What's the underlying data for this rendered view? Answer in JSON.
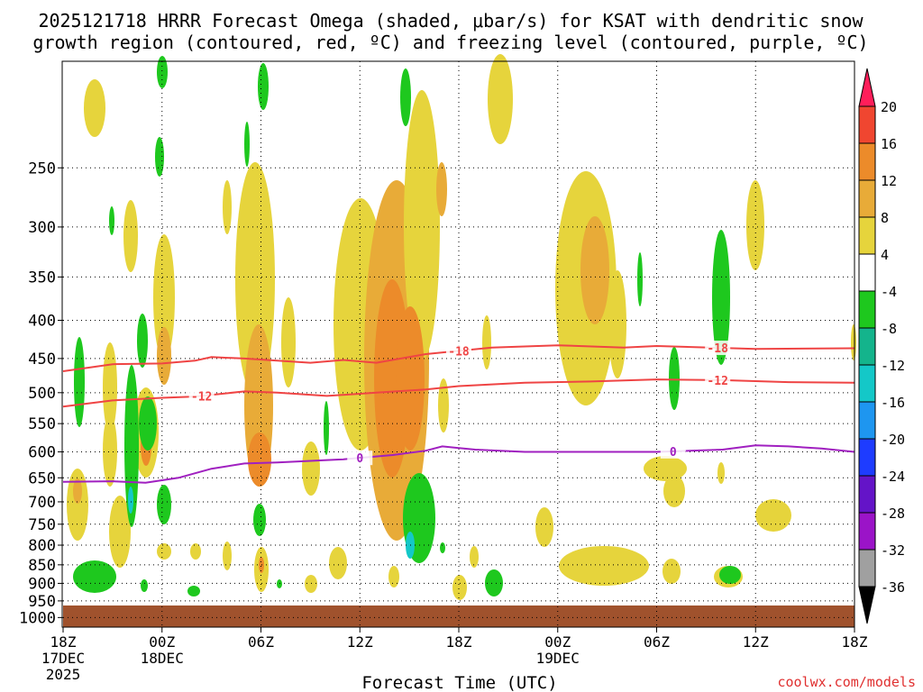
{
  "chart_data": {
    "type": "heatmap",
    "title_line1": "2025121718 HRRR Forecast Omega (shaded, μbar/s) for KSAT with dendritic snow",
    "title_line2": "growth region (contoured, red, ºC) and freezing level (contoured, purple, ºC)",
    "xlabel": "Forecast Time (UTC)",
    "ylabel": "",
    "credit": "coolwx.com/models",
    "x_range_hours": [
      0,
      48
    ],
    "y_range_hpa": [
      1030,
      180
    ],
    "y_scale": "log",
    "grid": true,
    "x_ticks": [
      {
        "hour": 0,
        "label": "18Z",
        "sub": "17DEC",
        "sub2": "2025"
      },
      {
        "hour": 6,
        "label": "00Z",
        "sub": "18DEC"
      },
      {
        "hour": 12,
        "label": "06Z"
      },
      {
        "hour": 18,
        "label": "12Z"
      },
      {
        "hour": 24,
        "label": "18Z"
      },
      {
        "hour": 30,
        "label": "00Z",
        "sub": "19DEC"
      },
      {
        "hour": 36,
        "label": "06Z"
      },
      {
        "hour": 42,
        "label": "12Z"
      },
      {
        "hour": 48,
        "label": "18Z"
      }
    ],
    "y_ticks": [
      250,
      300,
      350,
      400,
      450,
      500,
      550,
      600,
      650,
      700,
      750,
      800,
      850,
      900,
      950,
      1000
    ],
    "colorbar": {
      "labels": [
        "20",
        "16",
        "12",
        "8",
        "4",
        "-4",
        "-8",
        "-12",
        "-16",
        "-20",
        "-24",
        "-28",
        "-32",
        "-36"
      ],
      "colors": [
        "#ff1e5a",
        "#f04630",
        "#ec8b2a",
        "#e8ab38",
        "#e6d43c",
        "#ffffff",
        "#1ec81e",
        "#14b48c",
        "#14c8c8",
        "#1e96f0",
        "#1e3cff",
        "#6414c8",
        "#9b14c8",
        "#a0a0a0",
        "#000000"
      ]
    },
    "series": [
      {
        "name": "-18",
        "color": "#ef4444",
        "points": [
          [
            0,
            468
          ],
          [
            3,
            458
          ],
          [
            6,
            457
          ],
          [
            8,
            453
          ],
          [
            9,
            448
          ],
          [
            11,
            450
          ],
          [
            15,
            456
          ],
          [
            17,
            452
          ],
          [
            19,
            456
          ],
          [
            22,
            444
          ],
          [
            26,
            435
          ],
          [
            30,
            432
          ],
          [
            34,
            435
          ],
          [
            36,
            433
          ],
          [
            42,
            437
          ],
          [
            48,
            436
          ]
        ],
        "label_hours": [
          24.0,
          39.7
        ]
      },
      {
        "name": "-12",
        "color": "#ef4444",
        "points": [
          [
            0,
            522
          ],
          [
            3,
            512
          ],
          [
            6,
            508
          ],
          [
            8,
            506
          ],
          [
            11,
            498
          ],
          [
            13,
            500
          ],
          [
            16,
            505
          ],
          [
            19,
            500
          ],
          [
            22,
            495
          ],
          [
            24,
            490
          ],
          [
            28,
            485
          ],
          [
            32,
            483
          ],
          [
            36,
            480
          ],
          [
            40,
            481
          ],
          [
            44,
            484
          ],
          [
            48,
            485
          ]
        ],
        "label_hours": [
          8.4,
          39.7
        ]
      },
      {
        "name": "0",
        "color": "#a020c0",
        "points": [
          [
            0,
            658
          ],
          [
            3,
            657
          ],
          [
            5,
            660
          ],
          [
            7,
            650
          ],
          [
            9,
            632
          ],
          [
            11,
            622
          ],
          [
            13,
            620
          ],
          [
            17,
            614
          ],
          [
            20,
            606
          ],
          [
            22,
            598
          ],
          [
            23,
            590
          ],
          [
            25,
            596
          ],
          [
            28,
            600
          ],
          [
            31,
            600
          ],
          [
            36,
            600
          ],
          [
            40,
            596
          ],
          [
            42,
            588
          ],
          [
            44,
            590
          ],
          [
            46,
            594
          ],
          [
            48,
            600
          ]
        ],
        "label_hours": [
          18.0,
          37.0
        ]
      }
    ],
    "legend_position": "right colorbar"
  }
}
